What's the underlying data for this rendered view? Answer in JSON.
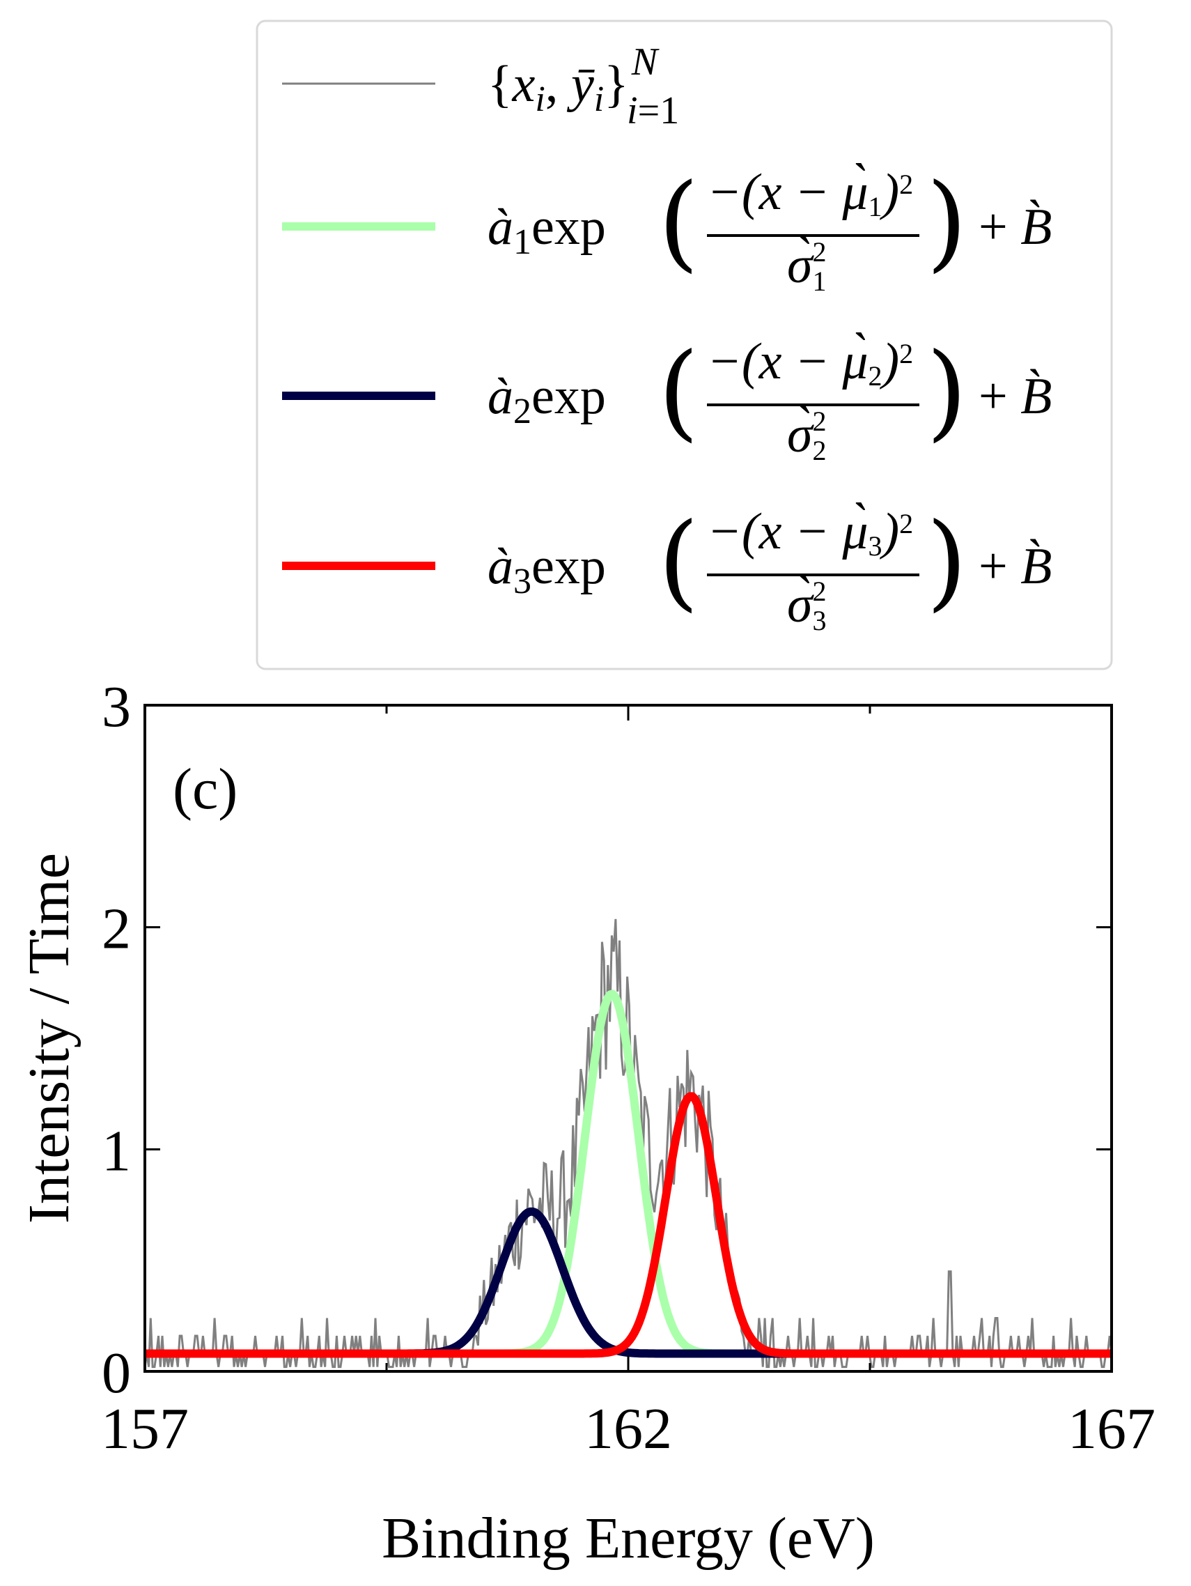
{
  "chart_data": {
    "type": "line",
    "panel_label": "(c)",
    "xlabel": "Binding Energy (eV)",
    "ylabel": "Intensity / Time",
    "xlim": [
      157,
      167
    ],
    "ylim": [
      0,
      3
    ],
    "xticks": [
      157,
      162,
      167
    ],
    "xtick_minor": [
      159.5,
      164.5
    ],
    "yticks": [
      0,
      1,
      2,
      3
    ],
    "grid": false,
    "legend_position": "top (above plot)",
    "baseline": 0.08,
    "series": [
      {
        "name": "{x_i, ȳ_i}_{i=1}^N",
        "kind": "noisy-data",
        "color": "#808080",
        "x_range": [
          157,
          167
        ],
        "points": 500,
        "peak_max": 2.33
      },
      {
        "name": "à1 exp(−(x−μ̀1)²/σ̀1²) + B̀",
        "kind": "gaussian",
        "color": "#aaffaa",
        "amplitude": 1.62,
        "center": 161.83,
        "sigma_param": 0.39
      },
      {
        "name": "à2 exp(−(x−μ̀2)²/σ̀2²) + B̀",
        "kind": "gaussian",
        "color": "#000044",
        "amplitude": 0.64,
        "center": 161.0,
        "sigma_param": 0.45
      },
      {
        "name": "à3 exp(−(x−μ̀3)²/σ̀3²) + B̀",
        "kind": "gaussian",
        "color": "#ff0000",
        "amplitude": 1.16,
        "center": 162.65,
        "sigma_param": 0.37
      }
    ]
  }
}
